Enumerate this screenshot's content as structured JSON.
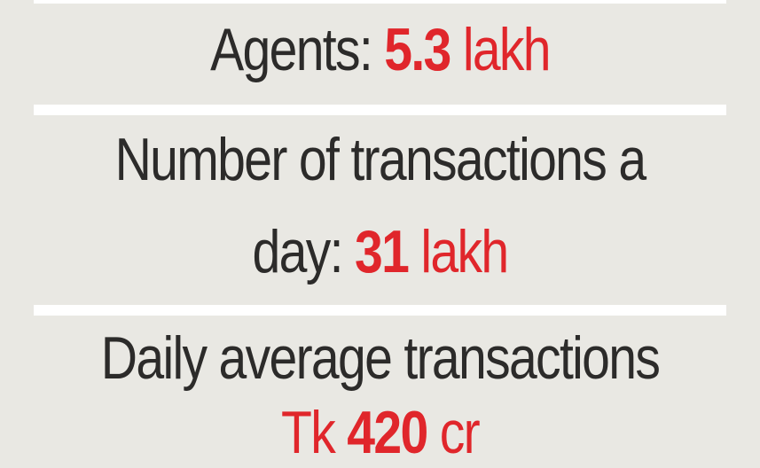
{
  "stats": [
    {
      "label": "Agents:",
      "value": "5.3",
      "unit": "lakh"
    },
    {
      "label_line1": "Number of transactions a",
      "label_line2": "day:",
      "value": "31",
      "unit": "lakh"
    },
    {
      "label_line1": "Daily average transactions",
      "value_prefix": "Tk",
      "value": "420",
      "unit": "cr"
    }
  ],
  "colors": {
    "background": "#e9e8e3",
    "text": "#2c2b2a",
    "accent": "#e0262b",
    "divider": "#ffffff"
  }
}
